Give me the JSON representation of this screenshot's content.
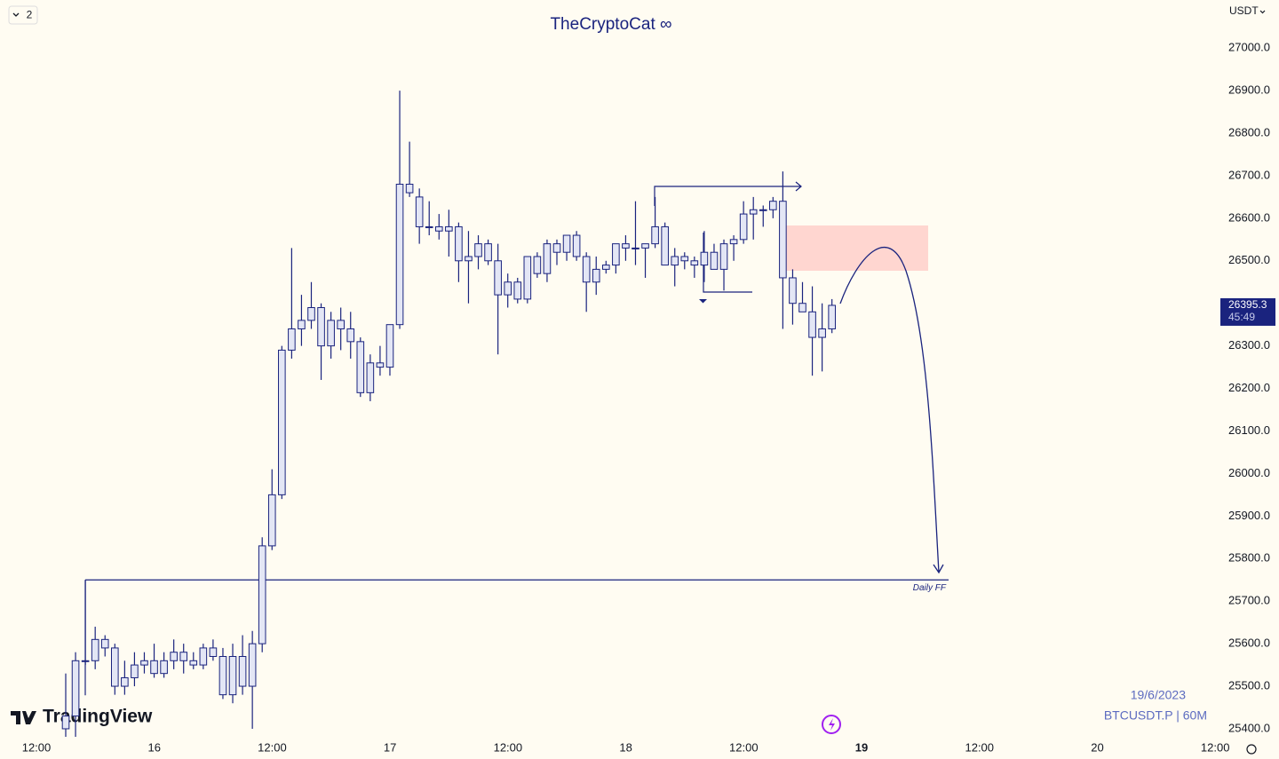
{
  "chart_data": {
    "type": "candlestick",
    "title": "TheCryptoCat ∞",
    "currency": "USDT",
    "layout_badge": "2",
    "brand": "TradingView",
    "date_note": "19/6/2023",
    "symbol_note": "BTCUSDT.P | 60M",
    "last_price": 26395.3,
    "last_price_label": "26395.3",
    "countdown": "45:49",
    "color": "#1a237e",
    "body_fill": "#e3e6f5",
    "levels": [
      {
        "label": "Daily FF",
        "value": 25750
      }
    ],
    "ylim": [
      25329,
      27113
    ],
    "yticks": [
      {
        "value": 25400,
        "label": "25400.0"
      },
      {
        "value": 25500,
        "label": "25500.0"
      },
      {
        "value": 25600,
        "label": "25600.0"
      },
      {
        "value": 25700,
        "label": "25700.0"
      },
      {
        "value": 25800,
        "label": "25800.0"
      },
      {
        "value": 25900,
        "label": "25900.0"
      },
      {
        "value": 26000,
        "label": "26000.0"
      },
      {
        "value": 26100,
        "label": "26100.0"
      },
      {
        "value": 26200,
        "label": "26200.0"
      },
      {
        "value": 26300,
        "label": "26300.0"
      },
      {
        "value": 26400,
        "label": "26400.0"
      },
      {
        "value": 26500,
        "label": "26500.0"
      },
      {
        "value": 26600,
        "label": "26600.0"
      },
      {
        "value": 26700,
        "label": "26700.0"
      },
      {
        "value": 26800,
        "label": "26800.0"
      },
      {
        "value": 26900,
        "label": "26900.0"
      },
      {
        "value": 27000,
        "label": "27000.0"
      }
    ],
    "xtick_labels": [
      "12:00",
      "16",
      "12:00",
      "17",
      "12:00",
      "18",
      "12:00",
      "19",
      "12:00",
      "20",
      "12:00"
    ],
    "open": [
      25400,
      25430,
      25560,
      25560,
      25610,
      25590,
      25500,
      25520,
      25550,
      25560,
      25530,
      25560,
      25580,
      25560,
      25550,
      25590,
      25570,
      25480,
      25570,
      25500,
      25600,
      25830,
      25950,
      26290,
      26340,
      26360,
      26390,
      26300,
      26360,
      26340,
      26310,
      26190,
      26260,
      26250,
      26350,
      26680,
      26650,
      26580,
      26580,
      26570,
      26580,
      26500,
      26510,
      26540,
      26500,
      26420,
      26450,
      26410,
      26510,
      26470,
      26540,
      26520,
      26560,
      26510,
      26450,
      26480,
      26490,
      26540,
      26530,
      26530,
      26540,
      26580,
      26490,
      26510,
      26500,
      26490,
      26520,
      26480,
      26540,
      26550,
      26610,
      26620,
      26620,
      26640,
      26460,
      26400,
      26380,
      26320,
      26340
    ],
    "high": [
      25530,
      25580,
      25750,
      25640,
      25620,
      25600,
      25560,
      25580,
      25580,
      25600,
      25580,
      25610,
      25600,
      25580,
      25600,
      25610,
      25590,
      25600,
      25620,
      25630,
      25850,
      26010,
      26300,
      26530,
      26420,
      26450,
      26400,
      26380,
      26390,
      26380,
      26320,
      26280,
      26300,
      26350,
      26900,
      26780,
      26670,
      26640,
      26610,
      26620,
      26590,
      26570,
      26560,
      26550,
      26540,
      26470,
      26460,
      26510,
      26520,
      26550,
      26550,
      26560,
      26570,
      26520,
      26510,
      26500,
      26540,
      26560,
      26640,
      26540,
      26650,
      26590,
      26530,
      26520,
      26510,
      26570,
      26540,
      26550,
      26560,
      26640,
      26650,
      26630,
      26650,
      26710,
      26480,
      26450,
      26440,
      26400,
      26410
    ],
    "low": [
      25340,
      25340,
      25550,
      25540,
      25570,
      25480,
      25480,
      25500,
      25530,
      25520,
      25520,
      25540,
      25530,
      25540,
      25540,
      25560,
      25470,
      25460,
      25480,
      25400,
      25580,
      25820,
      25940,
      26270,
      26300,
      26340,
      26220,
      26270,
      26290,
      26270,
      26180,
      26170,
      26230,
      26230,
      26340,
      26650,
      26540,
      26560,
      26550,
      26510,
      26450,
      26400,
      26480,
      26490,
      26280,
      26390,
      26400,
      26400,
      26460,
      26450,
      26490,
      26500,
      26500,
      26380,
      26420,
      26470,
      26470,
      26500,
      26490,
      26460,
      26530,
      26490,
      26440,
      26480,
      26460,
      26450,
      26480,
      26430,
      26500,
      26540,
      26550,
      26580,
      26600,
      26340,
      26350,
      26380,
      26230,
      26240,
      26330
    ],
    "close": [
      25430,
      25560,
      25560,
      25610,
      25590,
      25500,
      25520,
      25550,
      25560,
      25530,
      25560,
      25580,
      25560,
      25550,
      25590,
      25570,
      25480,
      25570,
      25500,
      25600,
      25830,
      25950,
      26290,
      26340,
      26360,
      26390,
      26300,
      26360,
      26340,
      26310,
      26190,
      26260,
      26250,
      26350,
      26680,
      26660,
      26580,
      26580,
      26570,
      26580,
      26500,
      26510,
      26540,
      26500,
      26420,
      26450,
      26410,
      26510,
      26470,
      26540,
      26520,
      26560,
      26510,
      26450,
      26480,
      26490,
      26540,
      26530,
      26530,
      26540,
      26580,
      26490,
      26510,
      26500,
      26490,
      26520,
      26480,
      26540,
      26550,
      26610,
      26620,
      26620,
      26640,
      26460,
      26400,
      26380,
      26320,
      26340,
      26395.3
    ]
  }
}
